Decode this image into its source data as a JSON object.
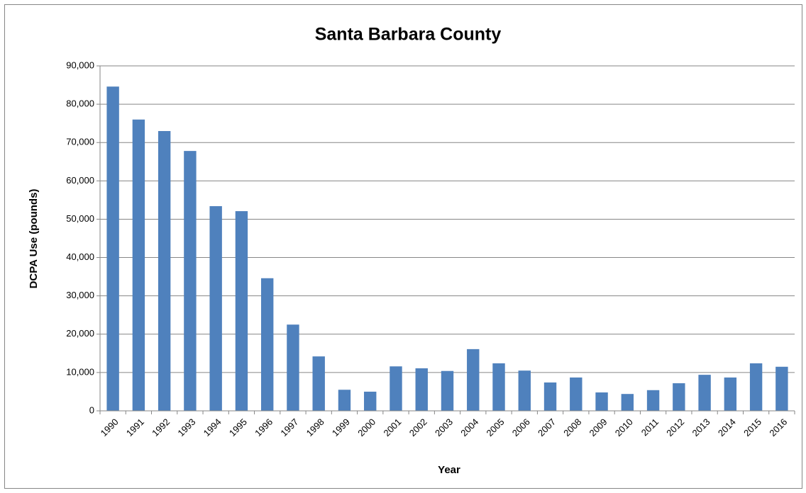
{
  "chart_data": {
    "type": "bar",
    "title": "Santa Barbara County",
    "x_label": "Year",
    "y_label": "DCPA Use (pounds)",
    "categories": [
      "1990",
      "1991",
      "1992",
      "1993",
      "1994",
      "1995",
      "1996",
      "1997",
      "1998",
      "1999",
      "2000",
      "2001",
      "2002",
      "2003",
      "2004",
      "2005",
      "2006",
      "2007",
      "2008",
      "2009",
      "2010",
      "2011",
      "2012",
      "2013",
      "2014",
      "2015",
      "2016"
    ],
    "values": [
      84600,
      76000,
      73000,
      67800,
      53400,
      52100,
      34600,
      22500,
      14200,
      5500,
      5000,
      11600,
      11100,
      10400,
      16100,
      12400,
      10500,
      7400,
      8700,
      4800,
      4400,
      5400,
      7200,
      9400,
      8700,
      12400,
      11500
    ],
    "color": "#4f81bd",
    "ylim": [
      0,
      90000
    ],
    "yticks": [
      0,
      {
        "value": 10000,
        "label": "10,000"
      },
      {
        "value": 20000,
        "label": "20,000"
      },
      {
        "value": 30000,
        "label": "30,000"
      },
      {
        "value": 40000,
        "label": "40,000"
      },
      {
        "value": 50000,
        "label": "50,000"
      },
      {
        "value": 60000,
        "label": "60,000"
      },
      {
        "value": 70000,
        "label": "70,000"
      },
      {
        "value": 80000,
        "label": "80,000"
      },
      {
        "value": 90000,
        "label": "90,000"
      }
    ],
    "grid": true
  }
}
